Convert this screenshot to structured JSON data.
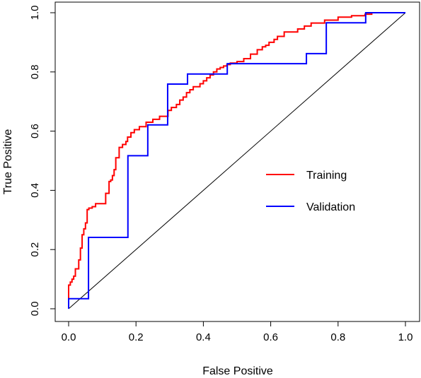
{
  "chart_data": {
    "type": "line",
    "title": "",
    "xlabel": "False Positive",
    "ylabel": "True Positive",
    "xlim": [
      0,
      1
    ],
    "ylim": [
      0,
      1
    ],
    "x_ticks": [
      "0.0",
      "0.2",
      "0.4",
      "0.6",
      "0.8",
      "1.0"
    ],
    "y_ticks": [
      "0.0",
      "0.2",
      "0.4",
      "0.6",
      "0.8",
      "1.0"
    ],
    "grid": false,
    "legend_position": "center-right",
    "reference_line": {
      "x": [
        0,
        1
      ],
      "y": [
        0,
        1
      ],
      "color": "#000000"
    },
    "series": [
      {
        "name": "Training",
        "color": "#ff0000",
        "x": [
          0.0,
          0.0,
          0.005,
          0.005,
          0.01,
          0.01,
          0.015,
          0.015,
          0.02,
          0.02,
          0.03,
          0.03,
          0.035,
          0.035,
          0.04,
          0.04,
          0.045,
          0.045,
          0.05,
          0.05,
          0.055,
          0.055,
          0.06,
          0.06,
          0.07,
          0.07,
          0.08,
          0.08,
          0.11,
          0.11,
          0.12,
          0.12,
          0.125,
          0.125,
          0.13,
          0.13,
          0.135,
          0.135,
          0.14,
          0.14,
          0.15,
          0.15,
          0.16,
          0.16,
          0.17,
          0.17,
          0.175,
          0.175,
          0.185,
          0.185,
          0.195,
          0.195,
          0.21,
          0.21,
          0.23,
          0.23,
          0.25,
          0.25,
          0.27,
          0.27,
          0.295,
          0.295,
          0.305,
          0.305,
          0.32,
          0.32,
          0.33,
          0.33,
          0.34,
          0.34,
          0.35,
          0.35,
          0.36,
          0.36,
          0.37,
          0.37,
          0.39,
          0.39,
          0.4,
          0.4,
          0.41,
          0.41,
          0.42,
          0.42,
          0.43,
          0.43,
          0.44,
          0.44,
          0.45,
          0.45,
          0.46,
          0.46,
          0.47,
          0.47,
          0.48,
          0.48,
          0.5,
          0.5,
          0.52,
          0.52,
          0.54,
          0.54,
          0.56,
          0.56,
          0.575,
          0.575,
          0.585,
          0.585,
          0.595,
          0.595,
          0.61,
          0.61,
          0.62,
          0.62,
          0.64,
          0.64,
          0.68,
          0.68,
          0.7,
          0.7,
          0.72,
          0.72,
          0.76,
          0.76,
          0.8,
          0.8,
          0.84,
          0.84,
          0.88,
          0.88,
          0.9,
          0.9,
          1.0
        ],
        "y": [
          0.0,
          0.08,
          0.08,
          0.09,
          0.09,
          0.1,
          0.1,
          0.11,
          0.11,
          0.135,
          0.135,
          0.165,
          0.165,
          0.205,
          0.205,
          0.25,
          0.25,
          0.27,
          0.27,
          0.29,
          0.29,
          0.335,
          0.335,
          0.34,
          0.34,
          0.345,
          0.345,
          0.355,
          0.355,
          0.39,
          0.39,
          0.43,
          0.43,
          0.435,
          0.435,
          0.45,
          0.45,
          0.47,
          0.47,
          0.51,
          0.51,
          0.545,
          0.545,
          0.555,
          0.555,
          0.565,
          0.565,
          0.58,
          0.58,
          0.595,
          0.595,
          0.605,
          0.605,
          0.615,
          0.615,
          0.63,
          0.63,
          0.64,
          0.64,
          0.65,
          0.65,
          0.67,
          0.67,
          0.68,
          0.68,
          0.69,
          0.69,
          0.705,
          0.705,
          0.715,
          0.715,
          0.73,
          0.73,
          0.74,
          0.74,
          0.75,
          0.75,
          0.76,
          0.76,
          0.77,
          0.77,
          0.78,
          0.78,
          0.79,
          0.79,
          0.8,
          0.8,
          0.81,
          0.81,
          0.815,
          0.815,
          0.82,
          0.82,
          0.825,
          0.825,
          0.83,
          0.83,
          0.835,
          0.835,
          0.845,
          0.845,
          0.86,
          0.86,
          0.875,
          0.875,
          0.885,
          0.885,
          0.89,
          0.89,
          0.9,
          0.9,
          0.91,
          0.91,
          0.92,
          0.92,
          0.935,
          0.935,
          0.945,
          0.945,
          0.955,
          0.955,
          0.965,
          0.965,
          0.975,
          0.975,
          0.985,
          0.985,
          0.99,
          0.99,
          0.995,
          0.995,
          1.0,
          1.0
        ]
      },
      {
        "name": "Validation",
        "color": "#0000ff",
        "x": [
          0.0,
          0.0,
          0.059,
          0.059,
          0.176,
          0.176,
          0.235,
          0.235,
          0.294,
          0.294,
          0.353,
          0.353,
          0.471,
          0.471,
          0.706,
          0.706,
          0.765,
          0.765,
          0.882,
          0.882,
          1.0
        ],
        "y": [
          0.0,
          0.034,
          0.034,
          0.241,
          0.241,
          0.517,
          0.517,
          0.621,
          0.621,
          0.759,
          0.759,
          0.793,
          0.793,
          0.828,
          0.828,
          0.862,
          0.862,
          0.966,
          0.966,
          1.0,
          1.0
        ]
      }
    ]
  }
}
